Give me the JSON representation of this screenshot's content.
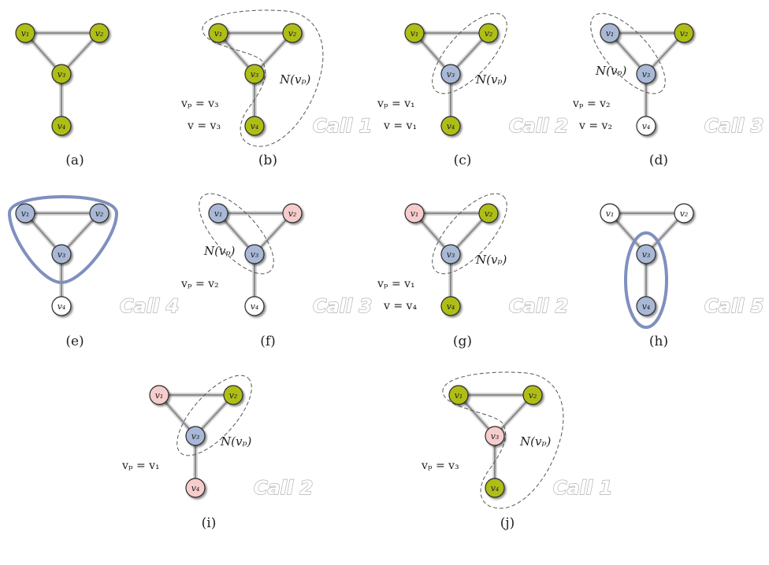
{
  "colors": {
    "green": "#aebe14",
    "blue": "#a8b8d6",
    "pink": "#f6cccc",
    "white": "#ffffff",
    "highlight": "#7f8fbf",
    "edge": "#8c8c8c"
  },
  "vertices": [
    "v₁",
    "v₂",
    "v₃",
    "v₄"
  ],
  "panels": [
    {
      "caption": "(a)",
      "states": [
        "green",
        "green",
        "green",
        "green"
      ],
      "nlabel": "",
      "vp": "",
      "v": "",
      "call": "",
      "region": "none"
    },
    {
      "caption": "(b)",
      "states": [
        "green",
        "green",
        "green",
        "green"
      ],
      "nlabel": "N(vₚ)",
      "vp": "vₚ = v₃",
      "v": "v = v₃",
      "call": "Call 1",
      "region": "all"
    },
    {
      "caption": "(c)",
      "states": [
        "green",
        "green",
        "blue",
        "green"
      ],
      "nlabel": "N(vₚ)",
      "vp": "vₚ = v₁",
      "v": "v = v₁",
      "call": "Call 2",
      "region": "v2v3"
    },
    {
      "caption": "(d)",
      "states": [
        "blue",
        "green",
        "blue",
        "white"
      ],
      "nlabel": "N(vₚ)",
      "vp": "vₚ = v₂",
      "v": "v = v₂",
      "call": "Call 3",
      "region": "v1v3"
    },
    {
      "caption": "(e)",
      "states": [
        "blue",
        "blue",
        "blue",
        "white"
      ],
      "nlabel": "",
      "vp": "",
      "v": "",
      "call": "Call 4",
      "region": "triangle"
    },
    {
      "caption": "(f)",
      "states": [
        "blue",
        "pink",
        "blue",
        "white"
      ],
      "nlabel": "N(vₚ)",
      "vp": "vₚ = v₂",
      "v": "",
      "call": "Call 3",
      "region": "v1v3"
    },
    {
      "caption": "(g)",
      "states": [
        "pink",
        "green",
        "blue",
        "green"
      ],
      "nlabel": "N(vₚ)",
      "vp": "vₚ = v₁",
      "v": "v = v₄",
      "call": "Call 2",
      "region": "v2v3"
    },
    {
      "caption": "(h)",
      "states": [
        "white",
        "white",
        "blue",
        "blue"
      ],
      "nlabel": "",
      "vp": "",
      "v": "",
      "call": "Call 5",
      "region": "v3v4"
    },
    {
      "caption": "(i)",
      "states": [
        "pink",
        "green",
        "blue",
        "pink"
      ],
      "nlabel": "N(vₚ)",
      "vp": "vₚ = v₁",
      "v": "",
      "call": "Call 2",
      "region": "v2v3"
    },
    {
      "caption": "(j)",
      "states": [
        "green",
        "green",
        "pink",
        "green"
      ],
      "nlabel": "N(vₚ)",
      "vp": "vₚ = v₃",
      "v": "",
      "call": "Call 1",
      "region": "all"
    }
  ]
}
